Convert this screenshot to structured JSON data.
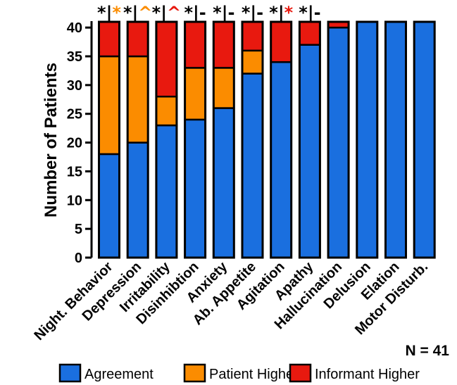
{
  "chart_data": {
    "type": "bar",
    "stacked": true,
    "categories": [
      "Night. Behavior",
      "Depression",
      "Irritability",
      "Disinhibtion",
      "Anxiety",
      "Ab. Appetite",
      "Agitation",
      "Apathy",
      "Hallucination",
      "Delusion",
      "Elation",
      "Motor Disturb."
    ],
    "series": [
      {
        "name": "Agreement",
        "color": "#1a6fdf",
        "values": [
          18,
          20,
          23,
          24,
          26,
          32,
          34,
          37,
          40,
          41,
          41,
          41
        ]
      },
      {
        "name": "Patient Higher",
        "color": "#fb8c00",
        "values": [
          17,
          15,
          5,
          9,
          7,
          4,
          0,
          0,
          0,
          0,
          0,
          0
        ]
      },
      {
        "name": "Informant Higher",
        "color": "#e8190f",
        "values": [
          6,
          6,
          13,
          8,
          8,
          5,
          7,
          4,
          1,
          0,
          0,
          0
        ]
      }
    ],
    "ylabel": "Number of Patients",
    "xlabel": "",
    "ylim": [
      0,
      41
    ],
    "yticks": [
      0,
      5,
      10,
      15,
      20,
      25,
      30,
      35,
      40
    ],
    "annotation": "N = 41",
    "legend_position": "bottom",
    "significance": [
      {
        "left": "*",
        "right": "*",
        "right_color": "#fb8c00"
      },
      {
        "left": "*",
        "right": "^",
        "right_color": "#fb8c00"
      },
      {
        "left": "*",
        "right": "^",
        "right_color": "#e8190f"
      },
      {
        "left": "*",
        "right": "-",
        "right_color": "#000000"
      },
      {
        "left": "*",
        "right": "-",
        "right_color": "#000000"
      },
      {
        "left": "*",
        "right": "-",
        "right_color": "#000000"
      },
      {
        "left": "*",
        "right": "*",
        "right_color": "#e8190f"
      },
      {
        "left": "*",
        "right": "-",
        "right_color": "#000000"
      },
      null,
      null,
      null,
      null
    ],
    "separator": "|"
  }
}
